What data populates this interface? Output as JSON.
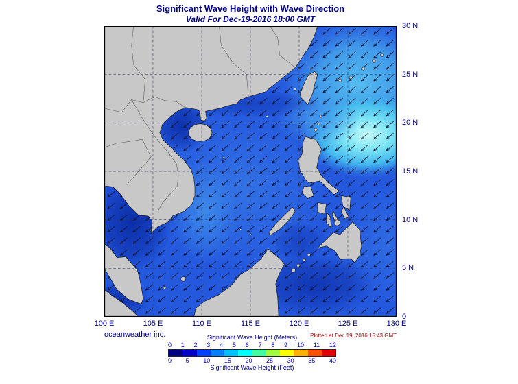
{
  "title": "Significant Wave Height with Wave Direction",
  "subtitle": "Valid For Dec-19-2016 18:00 GMT",
  "credit": "oceanweather inc.",
  "plotted_at": "Plotted at Dec 19, 2016 15:43 GMT",
  "axes": {
    "lon_labels": [
      "100 E",
      "105 E",
      "110 E",
      "115 E",
      "120 E",
      "125 E",
      "130 E"
    ],
    "lat_labels": [
      "30 N",
      "25 N",
      "20 N",
      "15 N",
      "10 N",
      "5 N",
      "0"
    ]
  },
  "legend": {
    "meters_label": "Significant Wave Height (Meters)",
    "feet_label": "Significant Wave Height (Feet)",
    "meters_ticks": [
      "0",
      "1",
      "2",
      "3",
      "4",
      "5",
      "6",
      "7",
      "8",
      "9",
      "10",
      "11",
      "12"
    ],
    "feet_ticks": [
      "0",
      "5",
      "10",
      "15",
      "20",
      "25",
      "30",
      "35",
      "40"
    ],
    "colors": [
      "#000080",
      "#0000c8",
      "#0040ff",
      "#0080ff",
      "#00c0ff",
      "#00ffff",
      "#40ffa0",
      "#a0ff40",
      "#ffff00",
      "#ffb000",
      "#ff5000",
      "#e00000"
    ]
  },
  "map_colors": {
    "sea_base": "#2459de",
    "land": "#c8c8c8",
    "bright_patch": "#c4f8f8"
  }
}
